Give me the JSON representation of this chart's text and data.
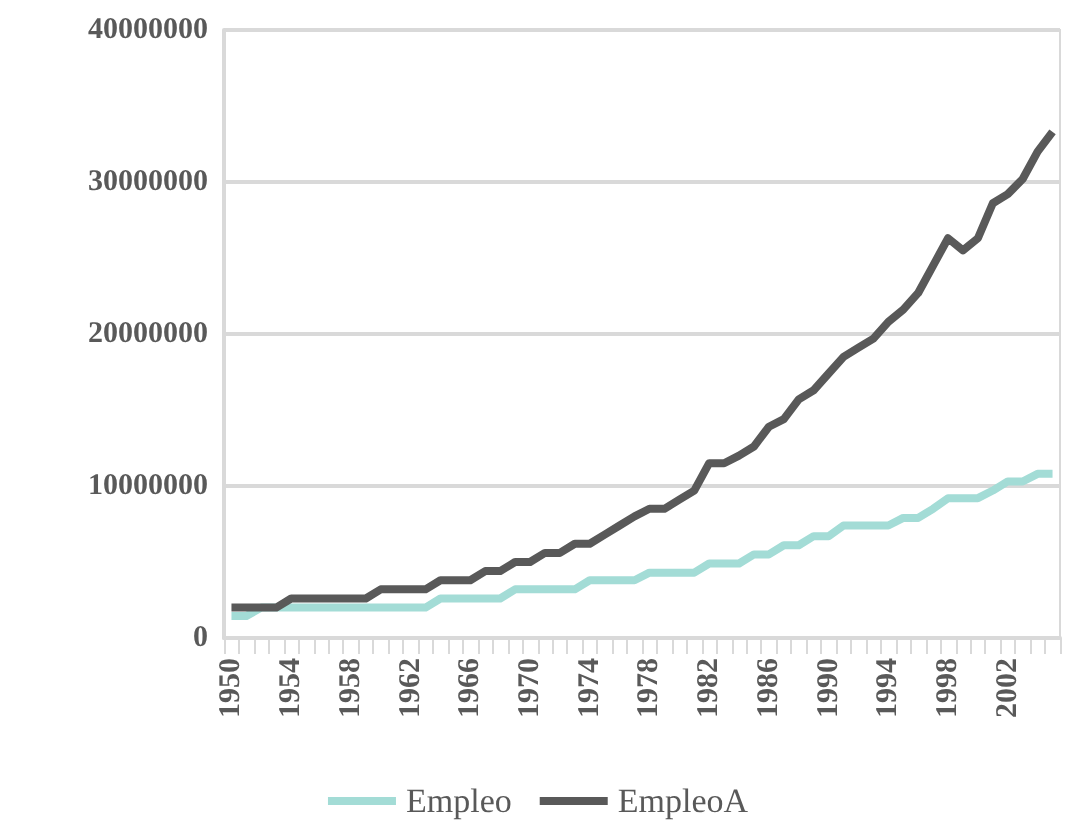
{
  "chart_data": {
    "type": "line",
    "categories": [
      "1950",
      null,
      null,
      null,
      "1954",
      null,
      null,
      null,
      "1958",
      null,
      null,
      null,
      "1962",
      null,
      null,
      null,
      "1966",
      null,
      null,
      null,
      "1970",
      null,
      null,
      null,
      "1974",
      null,
      null,
      null,
      "1978",
      null,
      null,
      null,
      "1982",
      null,
      null,
      null,
      "1986",
      null,
      null,
      null,
      "1990",
      null,
      null,
      null,
      "1994",
      null,
      null,
      null,
      "1998",
      null,
      null,
      null,
      "2002",
      null,
      null,
      null
    ],
    "series": [
      {
        "name": "Empleo",
        "color": "#a3dcd6",
        "values": [
          1450000,
          1450000,
          2000000,
          2000000,
          2000000,
          2000000,
          2000000,
          2000000,
          2000000,
          2000000,
          2000000,
          2000000,
          2000000,
          2000000,
          2600000,
          2600000,
          2600000,
          2600000,
          2600000,
          3200000,
          3200000,
          3200000,
          3200000,
          3200000,
          3800000,
          3800000,
          3800000,
          3800000,
          4300000,
          4300000,
          4300000,
          4300000,
          4900000,
          4900000,
          4900000,
          5500000,
          5500000,
          6100000,
          6100000,
          6700000,
          6700000,
          7400000,
          7400000,
          7400000,
          7400000,
          7900000,
          7900000,
          8500000,
          9200000,
          9200000,
          9200000,
          9700000,
          10300000,
          10300000,
          10800000,
          10800000
        ]
      },
      {
        "name": "EmpleoA",
        "color": "#595959",
        "values": [
          2000000,
          2000000,
          2000000,
          2000000,
          2600000,
          2600000,
          2600000,
          2600000,
          2600000,
          2600000,
          3200000,
          3200000,
          3200000,
          3200000,
          3800000,
          3800000,
          3800000,
          4400000,
          4400000,
          5000000,
          5000000,
          5600000,
          5600000,
          6200000,
          6200000,
          6800000,
          7400000,
          8000000,
          8500000,
          8500000,
          9100000,
          9700000,
          11500000,
          11500000,
          12000000,
          12600000,
          13900000,
          14400000,
          15700000,
          16300000,
          17400000,
          18500000,
          19100000,
          19700000,
          20800000,
          21600000,
          22700000,
          24500000,
          26300000,
          25500000,
          26300000,
          28600000,
          29200000,
          30200000,
          32000000,
          33300000
        ]
      }
    ],
    "ylim": [
      0,
      40000000
    ],
    "yticks": [
      0,
      10000000,
      20000000,
      30000000,
      40000000
    ],
    "grid": "y",
    "legend": "bottom",
    "marker": "none",
    "line_style": "solid"
  }
}
